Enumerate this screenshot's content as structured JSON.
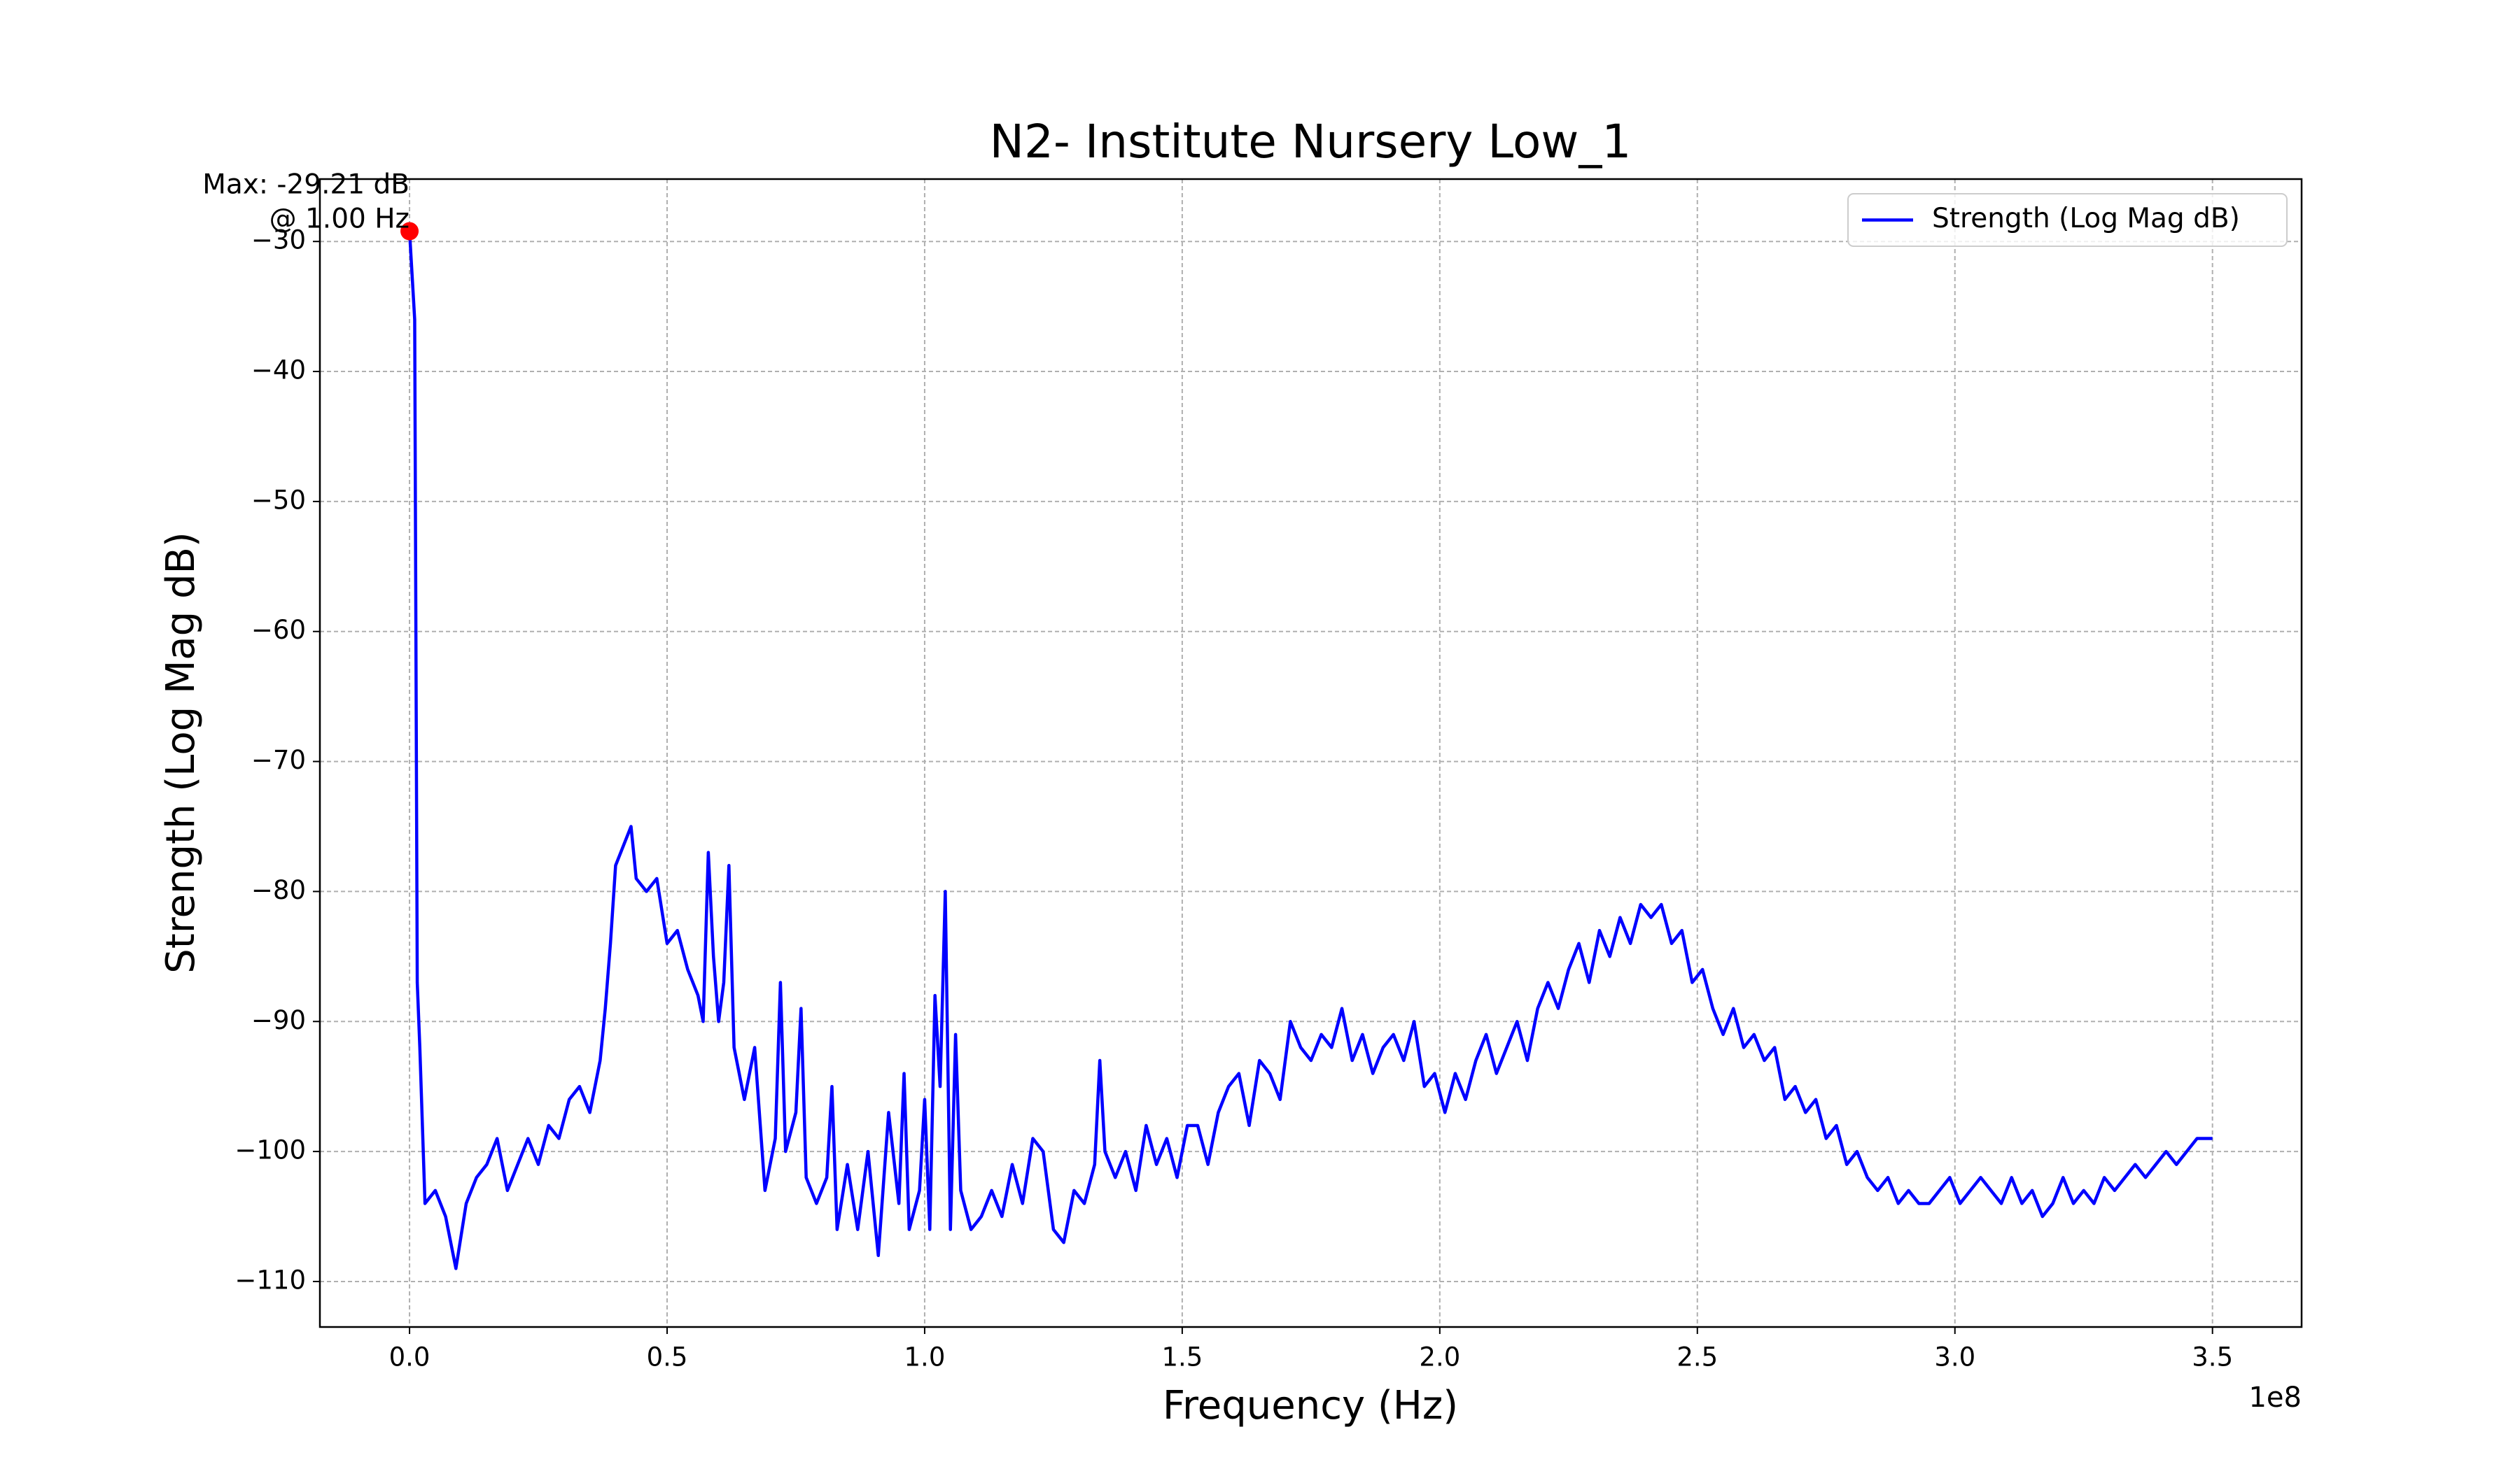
{
  "chart_data": {
    "type": "line",
    "title": "N2- Institute Nursery Low_1",
    "x_label": "Frequency (Hz)",
    "y_label": "Strength (Log Mag dB)",
    "x_offset_label": "1e8",
    "xlim": [
      -17400000,
      367300000
    ],
    "ylim": [
      -113.5,
      -25.2
    ],
    "xticks": [
      {
        "value": 0,
        "label": "0.0"
      },
      {
        "value": 50000000,
        "label": "0.5"
      },
      {
        "value": 100000000,
        "label": "1.0"
      },
      {
        "value": 150000000,
        "label": "1.5"
      },
      {
        "value": 200000000,
        "label": "2.0"
      },
      {
        "value": 250000000,
        "label": "2.5"
      },
      {
        "value": 300000000,
        "label": "3.0"
      },
      {
        "value": 350000000,
        "label": "3.5"
      }
    ],
    "yticks": [
      {
        "value": -30,
        "label": "−30"
      },
      {
        "value": -40,
        "label": "−40"
      },
      {
        "value": -50,
        "label": "−50"
      },
      {
        "value": -60,
        "label": "−60"
      },
      {
        "value": -70,
        "label": "−70"
      },
      {
        "value": -80,
        "label": "−80"
      },
      {
        "value": -90,
        "label": "−90"
      },
      {
        "value": -100,
        "label": "−100"
      },
      {
        "value": -110,
        "label": "−110"
      }
    ],
    "grid": true,
    "legend_position": "upper-right",
    "annotation": {
      "lines": [
        "Max: -29.21 dB",
        "@ 1.00 Hz"
      ],
      "color": "#ff0000"
    },
    "x": [
      1,
      1000000,
      1500000,
      2000000,
      3000000,
      5000000,
      7000000,
      9000000,
      11000000,
      13000000,
      15000000,
      17000000,
      19000000,
      21000000,
      23000000,
      25000000,
      27000000,
      29000000,
      31000000,
      33000000,
      35000000,
      37000000,
      38000000,
      39000000,
      40000000,
      41000000,
      42000000,
      43000000,
      44000000,
      46000000,
      48000000,
      50000000,
      52000000,
      54000000,
      56000000,
      57000000,
      58000000,
      59000000,
      60000000,
      61000000,
      62000000,
      63000000,
      65000000,
      67000000,
      69000000,
      71000000,
      72000000,
      73000000,
      75000000,
      76000000,
      77000000,
      79000000,
      81000000,
      82000000,
      83000000,
      85000000,
      87000000,
      89000000,
      91000000,
      93000000,
      95000000,
      96000000,
      97000000,
      99000000,
      100000000,
      101000000,
      102000000,
      103000000,
      104000000,
      105000000,
      106000000,
      107000000,
      109000000,
      111000000,
      113000000,
      115000000,
      117000000,
      119000000,
      121000000,
      123000000,
      125000000,
      127000000,
      129000000,
      131000000,
      133000000,
      134000000,
      135000000,
      137000000,
      139000000,
      141000000,
      143000000,
      145000000,
      147000000,
      149000000,
      151000000,
      153000000,
      155000000,
      157000000,
      159000000,
      161000000,
      163000000,
      165000000,
      167000000,
      169000000,
      171000000,
      173000000,
      175000000,
      177000000,
      179000000,
      181000000,
      183000000,
      185000000,
      187000000,
      189000000,
      191000000,
      193000000,
      195000000,
      197000000,
      199000000,
      201000000,
      203000000,
      205000000,
      207000000,
      209000000,
      211000000,
      213000000,
      215000000,
      217000000,
      219000000,
      221000000,
      223000000,
      225000000,
      227000000,
      229000000,
      231000000,
      233000000,
      235000000,
      237000000,
      239000000,
      241000000,
      243000000,
      245000000,
      247000000,
      249000000,
      251000000,
      253000000,
      255000000,
      257000000,
      259000000,
      261000000,
      263000000,
      265000000,
      267000000,
      269000000,
      271000000,
      273000000,
      275000000,
      277000000,
      279000000,
      281000000,
      283000000,
      285000000,
      287000000,
      289000000,
      291000000,
      293000000,
      295000000,
      297000000,
      299000000,
      301000000,
      303000000,
      305000000,
      307000000,
      309000000,
      311000000,
      313000000,
      315000000,
      317000000,
      319000000,
      321000000,
      323000000,
      325000000,
      327000000,
      329000000,
      331000000,
      333000000,
      335000000,
      337000000,
      339000000,
      341000000,
      343000000,
      345000000,
      347000000,
      349000000,
      350000000
    ],
    "series": [
      {
        "name": "Strength (Log Mag dB)",
        "color": "#0000ff",
        "values": [
          -29.21,
          -36,
          -87,
          -92,
          -104,
          -103,
          -105,
          -109,
          -104,
          -102,
          -101,
          -99,
          -103,
          -101,
          -99,
          -101,
          -98,
          -99,
          -96,
          -95,
          -97,
          -93,
          -89,
          -84,
          -78,
          -77,
          -76,
          -75,
          -79,
          -80,
          -79,
          -84,
          -83,
          -86,
          -88,
          -90,
          -77,
          -85,
          -90,
          -87,
          -78,
          -92,
          -96,
          -92,
          -103,
          -99,
          -87,
          -100,
          -97,
          -89,
          -102,
          -104,
          -102,
          -95,
          -106,
          -101,
          -106,
          -100,
          -108,
          -97,
          -104,
          -94,
          -106,
          -103,
          -96,
          -106,
          -88,
          -95,
          -80,
          -106,
          -91,
          -103,
          -106,
          -105,
          -103,
          -105,
          -101,
          -104,
          -99,
          -100,
          -106,
          -107,
          -103,
          -104,
          -101,
          -93,
          -100,
          -102,
          -100,
          -103,
          -98,
          -101,
          -99,
          -102,
          -98,
          -98,
          -101,
          -97,
          -95,
          -94,
          -98,
          -93,
          -94,
          -96,
          -90,
          -92,
          -93,
          -91,
          -92,
          -89,
          -93,
          -91,
          -94,
          -92,
          -91,
          -93,
          -90,
          -95,
          -94,
          -97,
          -94,
          -96,
          -93,
          -91,
          -94,
          -92,
          -90,
          -93,
          -89,
          -87,
          -89,
          -86,
          -84,
          -87,
          -83,
          -85,
          -82,
          -84,
          -81,
          -82,
          -81,
          -84,
          -83,
          -87,
          -86,
          -89,
          -91,
          -89,
          -92,
          -91,
          -93,
          -92,
          -96,
          -95,
          -97,
          -96,
          -99,
          -98,
          -101,
          -100,
          -102,
          -103,
          -102,
          -104,
          -103,
          -104,
          -104,
          -103,
          -102,
          -104,
          -103,
          -102,
          -103,
          -104,
          -102,
          -104,
          -103,
          -105,
          -104,
          -102,
          -104,
          -103,
          -104,
          -102,
          -103,
          -102,
          -101,
          -102,
          -101,
          -100,
          -101,
          -100,
          -99,
          -99,
          -99
        ]
      }
    ]
  }
}
